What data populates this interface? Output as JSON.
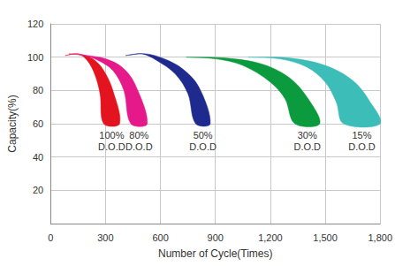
{
  "chart_data": {
    "type": "band",
    "x_label": "Number of Cycle(Times)",
    "y_label": "Capacity(%)",
    "xlim": [
      0,
      1800
    ],
    "xticks": [
      0,
      300,
      600,
      900,
      1200,
      1500,
      1800
    ],
    "ylim": [
      0,
      120
    ],
    "yticks": [
      20,
      40,
      60,
      80,
      100,
      120
    ],
    "grid": true,
    "series": [
      {
        "name": "100%\nD.O.D",
        "color": "#e3141f",
        "inner": [
          [
            80,
            101
          ],
          [
            150,
            102
          ],
          [
            200,
            98
          ],
          [
            240,
            90
          ],
          [
            270,
            78
          ],
          [
            290,
            60
          ]
        ],
        "outer": [
          [
            80,
            101
          ],
          [
            150,
            102
          ],
          [
            230,
            99
          ],
          [
            290,
            92
          ],
          [
            340,
            80
          ],
          [
            377,
            60
          ]
        ]
      },
      {
        "name": "80%\nD.O.D",
        "color": "#e6198a",
        "inner": [
          [
            100,
            102
          ],
          [
            180,
            101
          ],
          [
            260,
            98
          ],
          [
            340,
            92
          ],
          [
            400,
            80
          ],
          [
            438,
            60
          ]
        ],
        "outer": [
          [
            100,
            102
          ],
          [
            200,
            101
          ],
          [
            300,
            99
          ],
          [
            390,
            94
          ],
          [
            460,
            84
          ],
          [
            528,
            60
          ]
        ]
      },
      {
        "name": "50%\nD.O.D",
        "color": "#1f2a8e",
        "inner": [
          [
            410,
            101
          ],
          [
            500,
            102
          ],
          [
            580,
            98
          ],
          [
            680,
            90
          ],
          [
            750,
            78
          ],
          [
            792,
            60
          ]
        ],
        "outer": [
          [
            410,
            101
          ],
          [
            520,
            102
          ],
          [
            620,
            99
          ],
          [
            720,
            93
          ],
          [
            810,
            82
          ],
          [
            872,
            60
          ]
        ]
      },
      {
        "name": "30%\nD.O.D",
        "color": "#0b9a3d",
        "inner": [
          [
            740,
            100
          ],
          [
            900,
            99
          ],
          [
            1050,
            95
          ],
          [
            1200,
            85
          ],
          [
            1280,
            75
          ],
          [
            1334,
            60
          ]
        ],
        "outer": [
          [
            740,
            100
          ],
          [
            950,
            99.5
          ],
          [
            1150,
            96
          ],
          [
            1300,
            88
          ],
          [
            1400,
            76
          ],
          [
            1470,
            60
          ]
        ]
      },
      {
        "name": "15%\nD.O.D",
        "color": "#3dbdb8",
        "inner": [
          [
            1080,
            100
          ],
          [
            1250,
            99
          ],
          [
            1400,
            94
          ],
          [
            1500,
            85
          ],
          [
            1560,
            73
          ],
          [
            1600,
            60
          ]
        ],
        "outer": [
          [
            1080,
            100
          ],
          [
            1300,
            99.5
          ],
          [
            1500,
            95
          ],
          [
            1650,
            86
          ],
          [
            1740,
            74
          ],
          [
            1800,
            60
          ]
        ]
      }
    ]
  }
}
